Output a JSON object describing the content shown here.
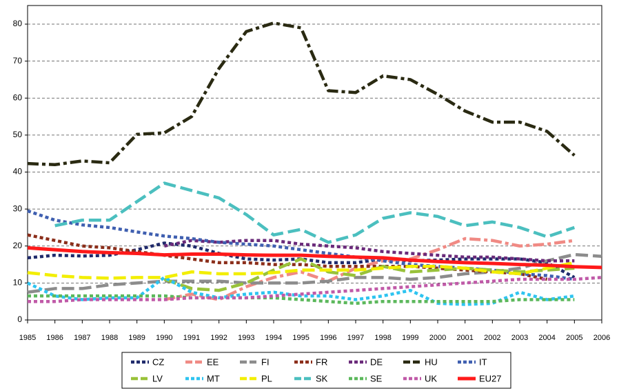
{
  "chart_data": {
    "type": "line",
    "x": [
      1985,
      1986,
      1987,
      1988,
      1989,
      1990,
      1991,
      1992,
      1993,
      1994,
      1995,
      1996,
      1997,
      1998,
      1999,
      2000,
      2001,
      2002,
      2003,
      2004,
      2005,
      2006
    ],
    "xlim": [
      1985,
      2006
    ],
    "xticks": [
      1985,
      1986,
      1987,
      1988,
      1989,
      1990,
      1991,
      1992,
      1993,
      1994,
      1995,
      1996,
      1997,
      1998,
      1999,
      2000,
      2001,
      2002,
      2003,
      2004,
      2005,
      2006
    ],
    "ylim": [
      0,
      80
    ],
    "yticks": [
      0,
      10,
      20,
      30,
      40,
      50,
      60,
      70,
      80
    ],
    "grid": true,
    "legend": "bottom",
    "series": [
      {
        "name": "CZ",
        "color": "#1f2a6b",
        "dash": "dot",
        "values": [
          16.8,
          17.5,
          17.3,
          17.5,
          19,
          20.8,
          20,
          18,
          16.5,
          16.2,
          16.5,
          15.5,
          15.5,
          16.5,
          16,
          16.2,
          16.5,
          16.5,
          16.5,
          15.5,
          11.5,
          null
        ]
      },
      {
        "name": "EE",
        "color": "#f08a84",
        "dash": "dashdot",
        "values": [
          null,
          null,
          null,
          null,
          null,
          5.5,
          7,
          5.5,
          9,
          11.5,
          13,
          10.5,
          14,
          16,
          16.5,
          19,
          22,
          21.5,
          20,
          20.5,
          21.5,
          null
        ]
      },
      {
        "name": "FI",
        "color": "#8c8c8c",
        "dash": "dash",
        "values": [
          7.5,
          8.5,
          8.5,
          9.5,
          10,
          10.5,
          10.5,
          10.5,
          10,
          10,
          10,
          10.5,
          11.5,
          11.5,
          11,
          11.5,
          12.5,
          13,
          14,
          16,
          17.7,
          17.2
        ]
      },
      {
        "name": "FR",
        "color": "#8b2e1a",
        "dash": "dot",
        "values": [
          23,
          21.5,
          20,
          19.5,
          18.5,
          17.5,
          16.5,
          15.5,
          15.5,
          15,
          15,
          14.5,
          14.5,
          14.5,
          14.5,
          14,
          13.5,
          13,
          12.5,
          11,
          null,
          null
        ]
      },
      {
        "name": "DE",
        "color": "#6a2a7a",
        "dash": "dot",
        "values": [
          null,
          null,
          null,
          null,
          null,
          20,
          21.5,
          21,
          21.5,
          21.5,
          20.5,
          20,
          19.5,
          18.5,
          18,
          17.5,
          17,
          17,
          16.5,
          16,
          16,
          null
        ]
      },
      {
        "name": "HU",
        "color": "#2a2a12",
        "dash": "dashdot",
        "values": [
          42.3,
          42,
          43,
          42.5,
          50.2,
          50.6,
          55,
          68,
          78,
          80.3,
          79,
          62,
          61.5,
          66,
          65,
          61,
          56.5,
          53.5,
          53.5,
          51,
          44.5,
          null
        ]
      },
      {
        "name": "IT",
        "color": "#3f5fb0",
        "dash": "dot",
        "values": [
          29.5,
          27,
          25.7,
          25,
          23.8,
          22.7,
          22,
          21,
          20.5,
          20,
          19,
          18,
          17,
          16,
          15,
          14.5,
          14,
          13.5,
          12.5,
          12,
          11,
          null
        ]
      },
      {
        "name": "LV",
        "color": "#99c23a",
        "dash": "dash",
        "values": [
          null,
          null,
          null,
          null,
          null,
          11,
          8.5,
          8,
          10,
          13.5,
          16.5,
          13,
          12,
          14.5,
          13,
          13.5,
          14,
          13.5,
          13,
          13.5,
          14,
          null
        ]
      },
      {
        "name": "MT",
        "color": "#2ec4f0",
        "dash": "dot",
        "values": [
          10,
          6.5,
          5.5,
          6,
          6,
          11.5,
          7.5,
          6,
          7,
          7.5,
          6.5,
          6.5,
          5.5,
          6.5,
          8,
          4.5,
          4.2,
          4.5,
          7.5,
          5.5,
          6.5,
          null
        ]
      },
      {
        "name": "PL",
        "color": "#f2ee00",
        "dash": "dash",
        "values": [
          12.8,
          12,
          11.5,
          11.3,
          11.5,
          11.5,
          13,
          12.5,
          12.5,
          12.8,
          13.5,
          13.5,
          13.5,
          14,
          14.5,
          14.5,
          14,
          13,
          12.5,
          14,
          15.5,
          null
        ]
      },
      {
        "name": "SK",
        "color": "#4bbfbf",
        "dash": "dash",
        "values": [
          null,
          25.5,
          27,
          27,
          32,
          37,
          35,
          33,
          28.5,
          23,
          24.5,
          21,
          23,
          27.5,
          29,
          28,
          25.5,
          26.5,
          25,
          22.5,
          25,
          null
        ]
      },
      {
        "name": "SE",
        "color": "#5cb85c",
        "dash": "dot",
        "values": [
          6.5,
          6.5,
          6.5,
          6.5,
          6.5,
          6.5,
          6,
          6,
          6,
          6,
          5.5,
          5,
          4.5,
          5,
          5,
          5,
          5,
          5,
          5.5,
          5.5,
          5.5,
          null
        ]
      },
      {
        "name": "UK",
        "color": "#c05aa8",
        "dash": "dot",
        "values": [
          5,
          5,
          5.5,
          5.5,
          5.5,
          5.5,
          6,
          6,
          6,
          6.5,
          7,
          7.5,
          8,
          8.5,
          9,
          9.5,
          10,
          10.5,
          11,
          11,
          11,
          11.5
        ]
      },
      {
        "name": "EU27",
        "color": "#ff1a1a",
        "dash": "solid",
        "values": [
          19.5,
          19,
          18.5,
          18.2,
          18,
          17.6,
          17.8,
          17.8,
          17.6,
          17.5,
          17.5,
          17.2,
          17,
          16.8,
          16.2,
          15.8,
          15.5,
          15.3,
          15,
          14.8,
          14.4,
          14.2
        ]
      }
    ]
  }
}
